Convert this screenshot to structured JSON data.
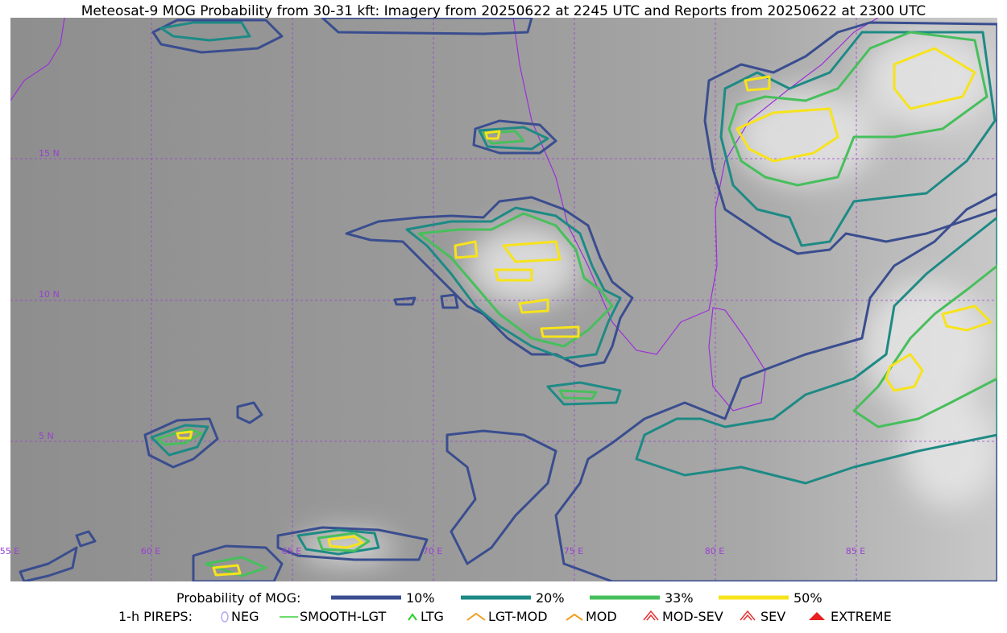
{
  "title": "Meteosat-9 MOG Probability from 30-31 kft: Imagery from 20250622 at 2245 UTC and Reports from 20250622 at 2300 UTC",
  "map": {
    "lat_labels": [
      "15 N",
      "10 N",
      "5 N"
    ],
    "lon_labels": [
      "55 E",
      "60 E",
      "65 E",
      "70 E",
      "75 E",
      "80 E",
      "85 E"
    ]
  },
  "legend": {
    "probability": {
      "title": "Probability of MOG:",
      "items": [
        {
          "label": "10%",
          "color": "#3a4d8f"
        },
        {
          "label": "20%",
          "color": "#1e8a85"
        },
        {
          "label": "33%",
          "color": "#47bf5c"
        },
        {
          "label": "50%",
          "color": "#f7e31b"
        }
      ]
    },
    "pireps": {
      "title": "1-h PIREPS:",
      "items": [
        "NEG",
        "SMOOTH-LGT",
        "LTG",
        "LGT-MOD",
        "MOD",
        "MOD-SEV",
        "SEV",
        "EXTREME"
      ]
    }
  }
}
